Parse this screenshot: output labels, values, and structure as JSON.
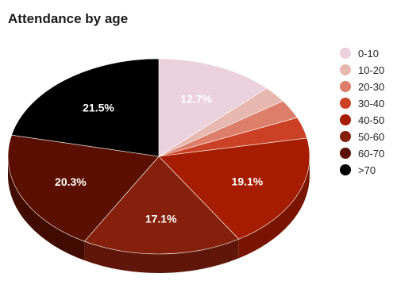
{
  "chart_data": {
    "type": "pie",
    "title": "Attendance by age",
    "legend_position": "right",
    "slices": [
      {
        "label": "0-10",
        "value": 12.7,
        "color": "#ead1dc",
        "shown_label": "12.7%"
      },
      {
        "label": "10-20",
        "value": 2.7,
        "color": "#e6b8af",
        "shown_label": ""
      },
      {
        "label": "20-30",
        "value": 3.1,
        "color": "#dd7e6b",
        "shown_label": ""
      },
      {
        "label": "30-40",
        "value": 3.5,
        "color": "#cc4125",
        "shown_label": ""
      },
      {
        "label": "40-50",
        "value": 19.1,
        "color": "#a61c00",
        "shown_label": "19.1%"
      },
      {
        "label": "50-60",
        "value": 17.1,
        "color": "#85200c",
        "shown_label": "17.1%"
      },
      {
        "label": "60-70",
        "value": 20.3,
        "color": "#5b0f00",
        "shown_label": "20.3%"
      },
      {
        "label": ">70",
        "value": 21.5,
        "color": "#000000",
        "shown_label": "21.5%"
      }
    ]
  }
}
